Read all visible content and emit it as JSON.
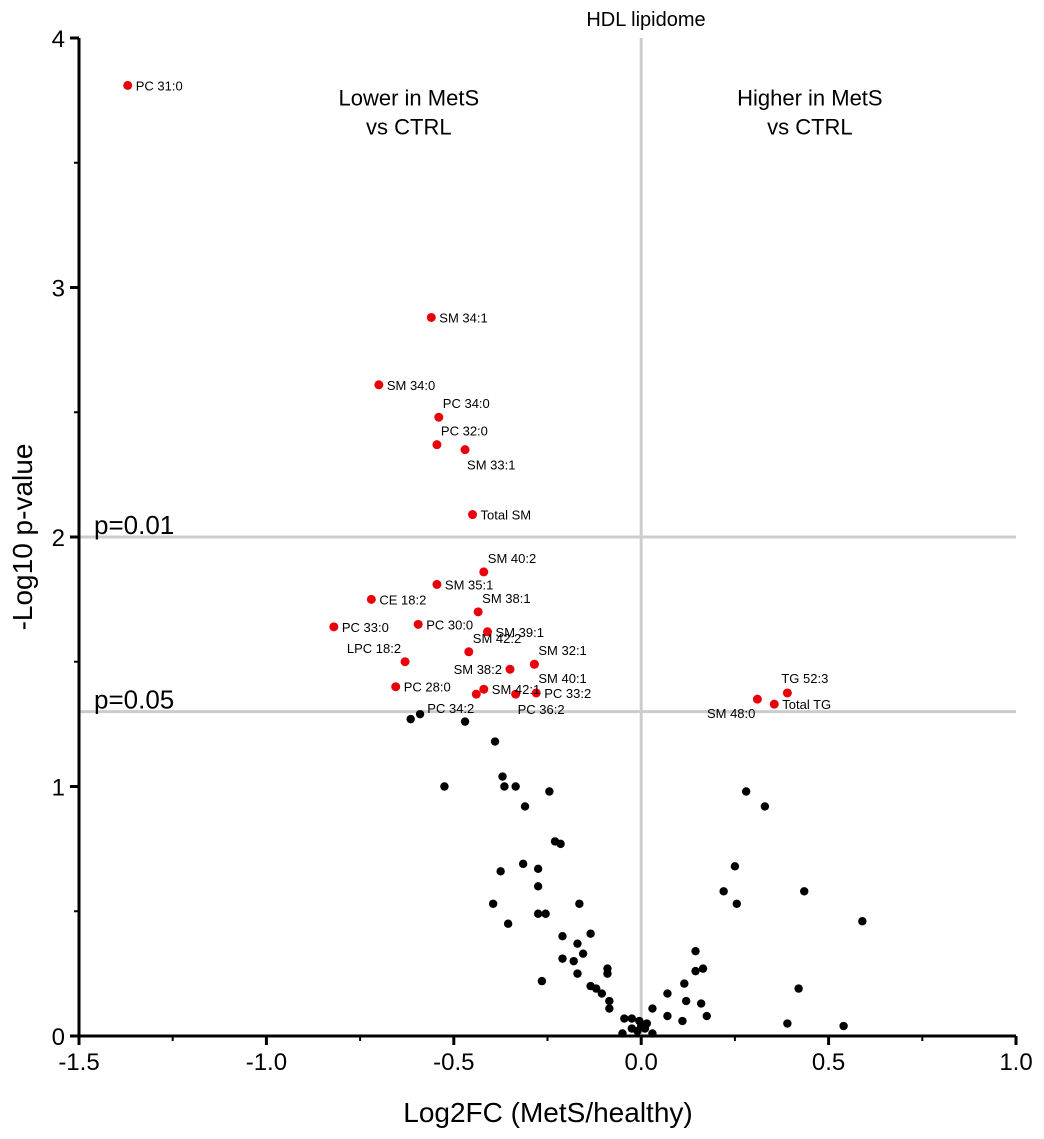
{
  "chart_data": {
    "type": "scatter",
    "title": "HDL lipidome",
    "xlabel": "Log2FC (MetS/healthy)",
    "ylabel": "-Log10 p-value",
    "xlim": [
      -1.5,
      1.0
    ],
    "ylim": [
      0,
      4
    ],
    "xticks": [
      -1.5,
      -1.0,
      -0.5,
      0.0,
      0.5,
      1.0
    ],
    "xtick_labels": [
      "-1.5",
      "-1.0",
      "-0.5",
      "0.0",
      "0.5",
      "1.0"
    ],
    "yticks": [
      0,
      1,
      2,
      3,
      4
    ],
    "ytick_labels": [
      "0",
      "1",
      "2",
      "3",
      "4"
    ],
    "vline_x": 0.0,
    "grid": false,
    "thresholds": [
      {
        "label": "p=0.01",
        "y": 2.0
      },
      {
        "label": "p=0.05",
        "y": 1.3
      }
    ],
    "region_labels": [
      {
        "name": "lower",
        "lines": [
          "Lower in MetS",
          "vs CTRL"
        ],
        "x": -0.62,
        "y": 3.73
      },
      {
        "name": "higher",
        "lines": [
          "Higher in MetS",
          "vs CTRL"
        ],
        "x": 0.45,
        "y": 3.73
      }
    ],
    "colors": {
      "significant": "#e8000b",
      "nonsignificant": "#000000",
      "reference_line": "#cccccc"
    },
    "significant": [
      {
        "label": "PC 31:0",
        "x": -1.37,
        "y": 3.81,
        "pos": "right"
      },
      {
        "label": "SM 34:1",
        "x": -0.56,
        "y": 2.88,
        "pos": "right"
      },
      {
        "label": "SM 34:0",
        "x": -0.7,
        "y": 2.61,
        "pos": "right"
      },
      {
        "label": "PC 34:0",
        "x": -0.54,
        "y": 2.48,
        "pos": "upright"
      },
      {
        "label": "PC 32:0",
        "x": -0.545,
        "y": 2.37,
        "pos": "upright"
      },
      {
        "label": "SM 33:1",
        "x": -0.47,
        "y": 2.35,
        "pos": "below"
      },
      {
        "label": "Total SM",
        "x": -0.45,
        "y": 2.09,
        "pos": "right"
      },
      {
        "label": "SM 40:2",
        "x": -0.42,
        "y": 1.86,
        "pos": "upright"
      },
      {
        "label": "SM 35:1",
        "x": -0.545,
        "y": 1.81,
        "pos": "right"
      },
      {
        "label": "CE 18:2",
        "x": -0.72,
        "y": 1.75,
        "pos": "right"
      },
      {
        "label": "SM 38:1",
        "x": -0.435,
        "y": 1.7,
        "pos": "upright"
      },
      {
        "label": "PC 33:0",
        "x": -0.82,
        "y": 1.64,
        "pos": "right"
      },
      {
        "label": "PC 30:0",
        "x": -0.595,
        "y": 1.65,
        "pos": "right"
      },
      {
        "label": "SM 39:1",
        "x": -0.41,
        "y": 1.62,
        "pos": "right"
      },
      {
        "label": "SM 42:2",
        "x": -0.46,
        "y": 1.54,
        "pos": "upright"
      },
      {
        "label": "LPC 18:2",
        "x": -0.63,
        "y": 1.5,
        "pos": "upleft"
      },
      {
        "label": "SM 38:2",
        "x": -0.35,
        "y": 1.47,
        "pos": "left"
      },
      {
        "label": "SM 32:1",
        "x": -0.285,
        "y": 1.49,
        "pos": "upright"
      },
      {
        "label": "SM 40:1",
        "x": -0.285,
        "y": 1.49,
        "pos": "downright"
      },
      {
        "label": "PC 28:0",
        "x": -0.655,
        "y": 1.4,
        "pos": "right"
      },
      {
        "label": "SM 42:1",
        "x": -0.42,
        "y": 1.39,
        "pos": "right"
      },
      {
        "label": "PC 34:2",
        "x": -0.44,
        "y": 1.37,
        "pos": "downleft"
      },
      {
        "label": "PC 36:2",
        "x": -0.335,
        "y": 1.37,
        "pos": "below"
      },
      {
        "label": "PC 33:2",
        "x": -0.28,
        "y": 1.375,
        "pos": "right"
      },
      {
        "label": "TG 52:3",
        "x": 0.39,
        "y": 1.375,
        "pos": "up"
      },
      {
        "label": "Total TG",
        "x": 0.355,
        "y": 1.33,
        "pos": "right"
      },
      {
        "label": "SM 48:0",
        "x": 0.31,
        "y": 1.35,
        "pos": "downleft"
      }
    ],
    "nonsignificant": [
      {
        "x": -0.615,
        "y": 1.27
      },
      {
        "x": -0.59,
        "y": 1.29
      },
      {
        "x": -0.47,
        "y": 1.26
      },
      {
        "x": -0.39,
        "y": 1.18
      },
      {
        "x": -0.37,
        "y": 1.04
      },
      {
        "x": -0.335,
        "y": 1.0
      },
      {
        "x": -0.365,
        "y": 1.0
      },
      {
        "x": -0.525,
        "y": 1.0
      },
      {
        "x": -0.245,
        "y": 0.98
      },
      {
        "x": -0.31,
        "y": 0.92
      },
      {
        "x": -0.23,
        "y": 0.78
      },
      {
        "x": -0.215,
        "y": 0.77
      },
      {
        "x": -0.315,
        "y": 0.69
      },
      {
        "x": -0.275,
        "y": 0.67
      },
      {
        "x": -0.375,
        "y": 0.66
      },
      {
        "x": -0.275,
        "y": 0.6
      },
      {
        "x": -0.395,
        "y": 0.53
      },
      {
        "x": -0.165,
        "y": 0.53
      },
      {
        "x": -0.275,
        "y": 0.49
      },
      {
        "x": -0.255,
        "y": 0.49
      },
      {
        "x": -0.355,
        "y": 0.45
      },
      {
        "x": -0.135,
        "y": 0.41
      },
      {
        "x": -0.21,
        "y": 0.4
      },
      {
        "x": -0.17,
        "y": 0.37
      },
      {
        "x": -0.155,
        "y": 0.33
      },
      {
        "x": -0.21,
        "y": 0.31
      },
      {
        "x": -0.18,
        "y": 0.3
      },
      {
        "x": -0.09,
        "y": 0.27
      },
      {
        "x": -0.09,
        "y": 0.25
      },
      {
        "x": -0.17,
        "y": 0.25
      },
      {
        "x": -0.265,
        "y": 0.22
      },
      {
        "x": -0.135,
        "y": 0.2
      },
      {
        "x": -0.12,
        "y": 0.19
      },
      {
        "x": -0.105,
        "y": 0.17
      },
      {
        "x": -0.085,
        "y": 0.14
      },
      {
        "x": -0.085,
        "y": 0.11
      },
      {
        "x": -0.045,
        "y": 0.07
      },
      {
        "x": -0.025,
        "y": 0.07
      },
      {
        "x": -0.005,
        "y": 0.06
      },
      {
        "x": -0.025,
        "y": 0.03
      },
      {
        "x": -0.01,
        "y": 0.02
      },
      {
        "x": 0.0,
        "y": 0.04
      },
      {
        "x": 0.01,
        "y": 0.03
      },
      {
        "x": 0.015,
        "y": 0.05
      },
      {
        "x": 0.03,
        "y": 0.01
      },
      {
        "x": -0.05,
        "y": 0.01
      },
      {
        "x": 0.03,
        "y": 0.11
      },
      {
        "x": 0.07,
        "y": 0.17
      },
      {
        "x": 0.07,
        "y": 0.08
      },
      {
        "x": 0.11,
        "y": 0.06
      },
      {
        "x": 0.12,
        "y": 0.14
      },
      {
        "x": 0.115,
        "y": 0.21
      },
      {
        "x": 0.145,
        "y": 0.26
      },
      {
        "x": 0.165,
        "y": 0.27
      },
      {
        "x": 0.145,
        "y": 0.34
      },
      {
        "x": 0.16,
        "y": 0.13
      },
      {
        "x": 0.175,
        "y": 0.08
      },
      {
        "x": 0.22,
        "y": 0.58
      },
      {
        "x": 0.25,
        "y": 0.68
      },
      {
        "x": 0.255,
        "y": 0.53
      },
      {
        "x": 0.28,
        "y": 0.98
      },
      {
        "x": 0.33,
        "y": 0.92
      },
      {
        "x": 0.39,
        "y": 0.05
      },
      {
        "x": 0.42,
        "y": 0.19
      },
      {
        "x": 0.435,
        "y": 0.58
      },
      {
        "x": 0.54,
        "y": 0.04
      },
      {
        "x": 0.59,
        "y": 0.46
      }
    ]
  }
}
